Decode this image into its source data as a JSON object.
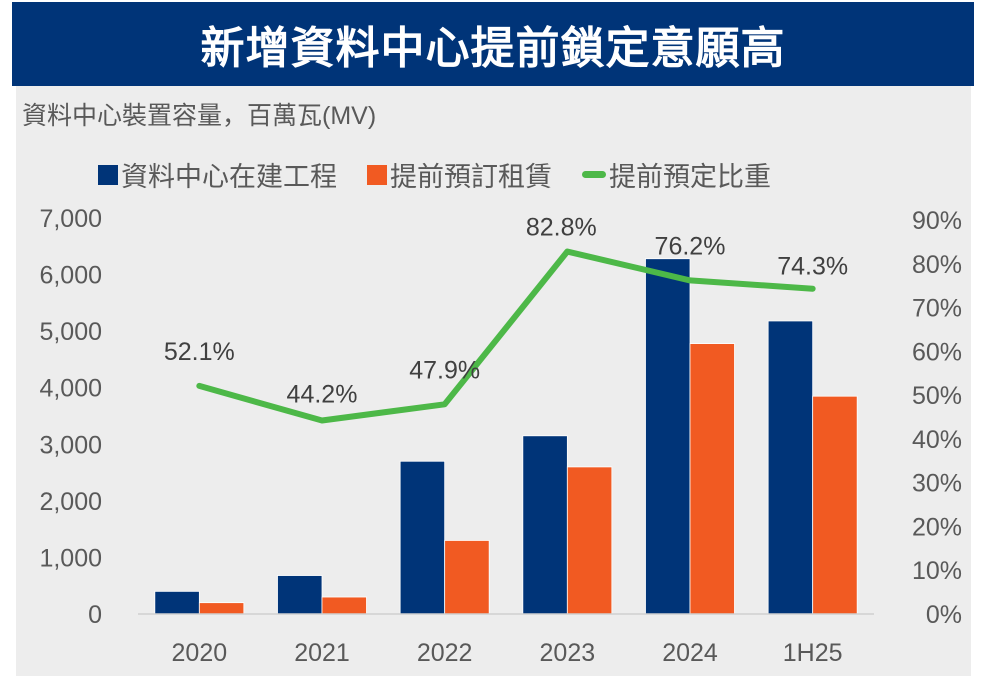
{
  "title": "新增資料中心提前鎖定意願高",
  "subtitle": "資料中心裝置容量，百萬瓦(MV)",
  "colors": {
    "banner": "#003478",
    "panel": "#EDEDED",
    "construction": "#003478",
    "preleased": "#F15A22",
    "ratio": "#4DB848"
  },
  "legend": [
    {
      "label": "資料中心在建工程",
      "type": "square",
      "color": "#003478"
    },
    {
      "label": "提前預訂租賃",
      "type": "square",
      "color": "#F15A22"
    },
    {
      "label": "提前預定比重",
      "type": "line",
      "color": "#4DB848"
    }
  ],
  "chart_data": {
    "type": "bar",
    "title": "新增資料中心提前鎖定意願高",
    "ylabel": "資料中心裝置容量，百萬瓦(MV)",
    "xlabel": "",
    "categories": [
      "2020",
      "2021",
      "2022",
      "2023",
      "2024",
      "1H25"
    ],
    "series": [
      {
        "name": "資料中心在建工程",
        "kind": "bar",
        "axis": "left",
        "color": "#003478",
        "values": [
          400,
          680,
          2700,
          3150,
          6280,
          5180
        ]
      },
      {
        "name": "提前預訂租賃",
        "kind": "bar",
        "axis": "left",
        "color": "#F15A22",
        "values": [
          200,
          300,
          1300,
          2600,
          4780,
          3850
        ]
      },
      {
        "name": "提前預定比重",
        "kind": "line",
        "axis": "right",
        "color": "#4DB848",
        "values": [
          52.1,
          44.2,
          47.9,
          82.8,
          76.2,
          74.3
        ],
        "labels": [
          "52.1%",
          "44.2%",
          "47.9%",
          "82.8%",
          "76.2%",
          "74.3%"
        ]
      }
    ],
    "ylim": [
      0,
      7000
    ],
    "y_ticks": [
      "0",
      "1,000",
      "2,000",
      "3,000",
      "4,000",
      "5,000",
      "6,000",
      "7,000"
    ],
    "y_tick_values": [
      0,
      1000,
      2000,
      3000,
      4000,
      5000,
      6000,
      7000
    ],
    "y2lim": [
      0,
      90
    ],
    "y2_ticks": [
      "0%",
      "10%",
      "20%",
      "30%",
      "40%",
      "50%",
      "60%",
      "70%",
      "80%",
      "90%"
    ],
    "y2_tick_values": [
      0,
      10,
      20,
      30,
      40,
      50,
      60,
      70,
      80,
      90
    ],
    "grid": false,
    "legend_position": "top"
  }
}
